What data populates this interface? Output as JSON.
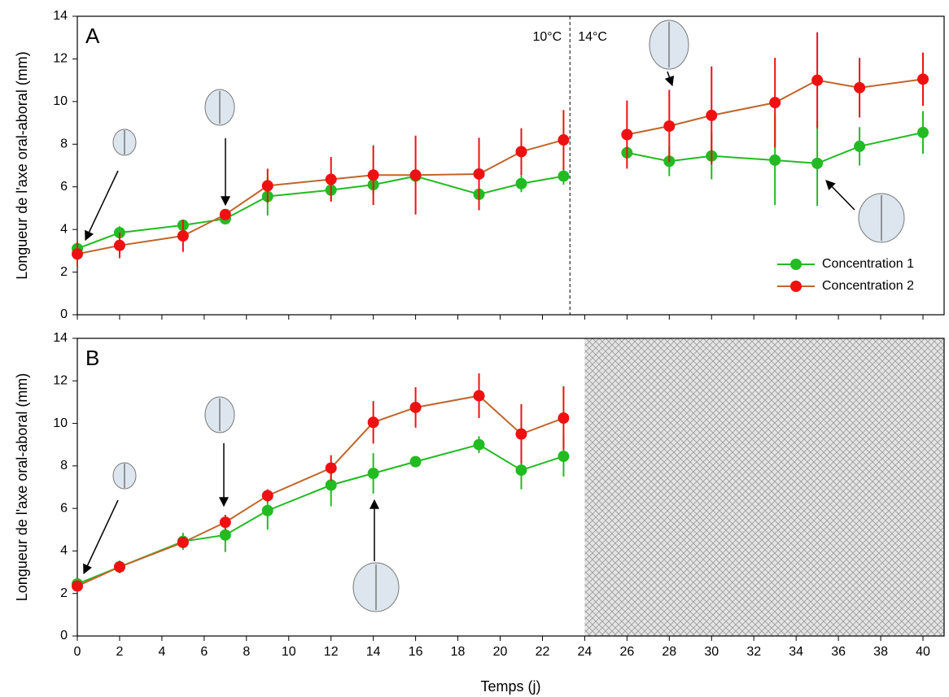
{
  "chart_data": [
    {
      "type": "line",
      "panel_label": "A",
      "ylabel": "Longueur de l'axe oral-aboral (mm)",
      "x": [
        0,
        2,
        5,
        7,
        9,
        12,
        14,
        16,
        19,
        21,
        23,
        24,
        26,
        28,
        30,
        33,
        35,
        37,
        40
      ],
      "series": [
        {
          "name": "Concentration 1",
          "color": "#22bb22",
          "line_color": "#22bb22",
          "values": [
            3.1,
            3.85,
            4.2,
            4.5,
            5.55,
            5.85,
            6.1,
            6.5,
            5.65,
            6.15,
            6.5,
            null,
            7.6,
            7.2,
            7.45,
            7.25,
            7.1,
            7.9,
            8.55
          ],
          "errors": [
            0.2,
            0.3,
            0.2,
            0.2,
            0.9,
            0.5,
            0.4,
            0.1,
            0.2,
            0.4,
            0.4,
            null,
            0.3,
            0.7,
            1.1,
            2.1,
            2.0,
            0.9,
            1.0
          ]
        },
        {
          "name": "Concentration 2",
          "color": "#ee1111",
          "line_color": "#c0652a",
          "values": [
            2.85,
            3.25,
            3.7,
            4.7,
            6.05,
            6.35,
            6.55,
            6.55,
            6.6,
            7.65,
            8.2,
            null,
            8.45,
            8.85,
            9.35,
            9.95,
            11.0,
            10.65,
            11.05
          ],
          "errors": [
            0.6,
            0.6,
            0.75,
            0.2,
            0.8,
            1.05,
            1.4,
            1.85,
            1.7,
            1.1,
            1.4,
            null,
            1.6,
            1.7,
            2.3,
            2.1,
            2.25,
            1.4,
            1.25
          ]
        }
      ],
      "xlim": [
        0,
        41
      ],
      "xticks": [
        0,
        2,
        4,
        6,
        8,
        10,
        12,
        14,
        16,
        18,
        20,
        22,
        24,
        26,
        28,
        30,
        32,
        34,
        36,
        38,
        40
      ],
      "x_tick_labels": false,
      "ylim": [
        0,
        14
      ],
      "yticks": [
        0,
        2,
        4,
        6,
        8,
        10,
        12,
        14
      ],
      "divider": {
        "x": 23.3,
        "left_label": "10°C",
        "right_label": "14°C"
      },
      "legend": "lower right"
    },
    {
      "type": "line",
      "panel_label": "B",
      "ylabel": "Longueur de l'axe oral-aboral (mm)",
      "xlabel": "Temps (j)",
      "x": [
        0,
        2,
        5,
        7,
        9,
        12,
        14,
        16,
        19,
        21,
        23
      ],
      "series": [
        {
          "name": "Concentration 1",
          "color": "#22bb22",
          "line_color": "#22bb22",
          "values": [
            2.45,
            3.25,
            4.45,
            4.75,
            5.9,
            7.1,
            7.65,
            8.2,
            9.0,
            7.8,
            8.45
          ],
          "errors": [
            0.15,
            0.3,
            0.4,
            0.8,
            0.9,
            1.0,
            0.95,
            0.2,
            0.4,
            0.9,
            0.95
          ]
        },
        {
          "name": "Concentration 2",
          "color": "#ee1111",
          "line_color": "#c0652a",
          "values": [
            2.35,
            3.25,
            4.4,
            5.35,
            6.6,
            7.9,
            10.05,
            10.75,
            11.3,
            9.5,
            10.25
          ],
          "errors": [
            0.2,
            0.2,
            0.2,
            0.35,
            0.3,
            0.6,
            1.0,
            0.95,
            1.05,
            1.4,
            1.5
          ]
        }
      ],
      "xlim": [
        0,
        41
      ],
      "xticks": [
        0,
        2,
        4,
        6,
        8,
        10,
        12,
        14,
        16,
        18,
        20,
        22,
        24,
        26,
        28,
        30,
        32,
        34,
        36,
        38,
        40
      ],
      "x_tick_labels": true,
      "ylim": [
        0,
        14
      ],
      "yticks": [
        0,
        2,
        4,
        6,
        8,
        10,
        12,
        14
      ],
      "shaded_xrange": [
        24,
        41
      ]
    }
  ]
}
